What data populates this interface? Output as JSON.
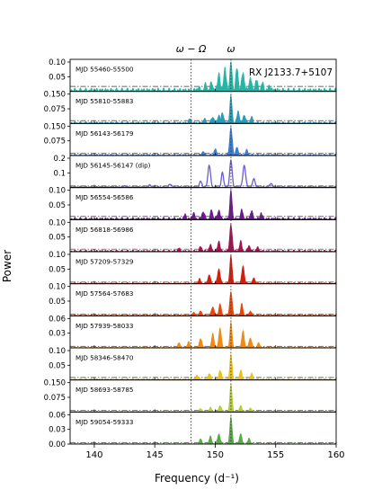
{
  "chart_data": {
    "type": "area",
    "object_label": "RX J2133.7+5107",
    "xlabel": "Frequency (d$^{-1}$)",
    "xlabel_display": "Frequency (d⁻¹)",
    "ylabel": "Power",
    "xlim": [
      138,
      160
    ],
    "x_ticks": [
      140,
      145,
      150,
      155,
      160
    ],
    "vlines": [
      {
        "label": "ω − Ω",
        "x": 148.0,
        "style": "dotted"
      },
      {
        "label": "ω",
        "x": 151.3,
        "style": "dotted"
      }
    ],
    "series": [
      {
        "name": "MJD 55460-55500",
        "color": "#26b5a4",
        "ylim": [
          0,
          0.1
        ],
        "yticks": [
          0.05,
          0.1
        ],
        "noise_level": 0.012,
        "peaks": [
          [
            148.6,
            0.01
          ],
          [
            149.2,
            0.02
          ],
          [
            149.7,
            0.025
          ],
          [
            150.3,
            0.06
          ],
          [
            150.8,
            0.075
          ],
          [
            151.3,
            0.1
          ],
          [
            151.8,
            0.075
          ],
          [
            152.3,
            0.06
          ],
          [
            152.9,
            0.045
          ],
          [
            153.4,
            0.035
          ],
          [
            153.9,
            0.025
          ],
          [
            154.5,
            0.015
          ]
        ]
      },
      {
        "name": "MJD 55810-55883",
        "color": "#2a9ab6",
        "ylim": [
          0,
          0.15
        ],
        "yticks": [
          0.075,
          0.15
        ],
        "noise_level": 0.01,
        "peaks": [
          [
            147.9,
            0.02
          ],
          [
            149.1,
            0.02
          ],
          [
            149.8,
            0.03
          ],
          [
            150.3,
            0.04
          ],
          [
            150.6,
            0.05
          ],
          [
            151.3,
            0.14
          ],
          [
            151.9,
            0.06
          ],
          [
            152.4,
            0.04
          ],
          [
            153.0,
            0.03
          ]
        ]
      },
      {
        "name": "MJD 56143-56179",
        "color": "#3b7dd0",
        "ylim": [
          0,
          0.15
        ],
        "yticks": [
          0.075,
          0.15
        ],
        "noise_level": 0.008,
        "peaks": [
          [
            149.0,
            0.02
          ],
          [
            150.0,
            0.03
          ],
          [
            151.3,
            0.14
          ],
          [
            151.8,
            0.04
          ],
          [
            152.6,
            0.025
          ]
        ]
      },
      {
        "name": "MJD 56145-56147 (dip)",
        "color": "#6b5cd0",
        "ylim": [
          0,
          0.2
        ],
        "yticks": [
          0.1,
          0.2
        ],
        "noise_level": 0.008,
        "style": "line",
        "peaks": [
          [
            142.5,
            0.01
          ],
          [
            144.6,
            0.015
          ],
          [
            146.3,
            0.02
          ],
          [
            148.8,
            0.04
          ],
          [
            149.5,
            0.15
          ],
          [
            150.6,
            0.1
          ],
          [
            151.3,
            0.18
          ],
          [
            152.4,
            0.15
          ],
          [
            153.2,
            0.06
          ],
          [
            154.6,
            0.025
          ]
        ]
      },
      {
        "name": "MJD 56554-56586",
        "color": "#6a1a8c",
        "ylim": [
          0,
          0.1
        ],
        "yticks": [
          0.05,
          0.1
        ],
        "noise_level": 0.008,
        "peaks": [
          [
            147.5,
            0.015
          ],
          [
            148.2,
            0.02
          ],
          [
            149.0,
            0.025
          ],
          [
            149.7,
            0.03
          ],
          [
            150.3,
            0.03
          ],
          [
            151.3,
            0.1
          ],
          [
            152.2,
            0.03
          ],
          [
            153.0,
            0.025
          ],
          [
            153.8,
            0.02
          ]
        ]
      },
      {
        "name": "MJD 56818-56986",
        "color": "#a01652",
        "ylim": [
          0,
          0.1
        ],
        "yticks": [
          0.05,
          0.1
        ],
        "noise_level": 0.006,
        "peaks": [
          [
            147.0,
            0.01
          ],
          [
            148.8,
            0.015
          ],
          [
            149.6,
            0.02
          ],
          [
            150.3,
            0.035
          ],
          [
            151.3,
            0.09
          ],
          [
            152.1,
            0.035
          ],
          [
            152.8,
            0.02
          ],
          [
            153.5,
            0.012
          ]
        ]
      },
      {
        "name": "MJD 57209-57329",
        "color": "#d01f10",
        "ylim": [
          0,
          0.1
        ],
        "yticks": [
          0.05,
          0.1
        ],
        "noise_level": 0.004,
        "peaks": [
          [
            148.7,
            0.015
          ],
          [
            149.5,
            0.03
          ],
          [
            150.3,
            0.05
          ],
          [
            151.3,
            0.095
          ],
          [
            152.3,
            0.06
          ],
          [
            153.2,
            0.02
          ]
        ]
      },
      {
        "name": "MJD 57564-57683",
        "color": "#e8470a",
        "ylim": [
          0,
          0.1
        ],
        "yticks": [
          0.05,
          0.1
        ],
        "noise_level": 0.004,
        "peaks": [
          [
            148.2,
            0.01
          ],
          [
            148.8,
            0.015
          ],
          [
            149.8,
            0.03
          ],
          [
            150.4,
            0.04
          ],
          [
            151.3,
            0.08
          ],
          [
            152.2,
            0.04
          ],
          [
            152.9,
            0.015
          ]
        ]
      },
      {
        "name": "MJD 57939-58033",
        "color": "#f08a12",
        "ylim": [
          0,
          0.06
        ],
        "yticks": [
          0.03,
          0.06
        ],
        "noise_level": 0.002,
        "peaks": [
          [
            147.0,
            0.01
          ],
          [
            147.8,
            0.012
          ],
          [
            148.8,
            0.018
          ],
          [
            149.8,
            0.03
          ],
          [
            150.4,
            0.04
          ],
          [
            151.3,
            0.052
          ],
          [
            152.3,
            0.035
          ],
          [
            152.9,
            0.02
          ],
          [
            153.6,
            0.01
          ]
        ]
      },
      {
        "name": "MJD 58346-58470",
        "color": "#e8c21a",
        "ylim": [
          0,
          0.1
        ],
        "yticks": [
          0.05,
          0.1
        ],
        "noise_level": 0.006,
        "peaks": [
          [
            148.5,
            0.015
          ],
          [
            149.5,
            0.02
          ],
          [
            150.4,
            0.03
          ],
          [
            151.3,
            0.085
          ],
          [
            152.1,
            0.03
          ],
          [
            153.0,
            0.02
          ]
        ]
      },
      {
        "name": "MJD 58693-58785",
        "color": "#b6cc3a",
        "ylim": [
          0,
          0.15
        ],
        "yticks": [
          0.075,
          0.15
        ],
        "noise_level": 0.006,
        "peaks": [
          [
            148.8,
            0.015
          ],
          [
            149.6,
            0.02
          ],
          [
            150.4,
            0.03
          ],
          [
            151.3,
            0.14
          ],
          [
            152.1,
            0.03
          ],
          [
            152.9,
            0.02
          ]
        ]
      },
      {
        "name": "MJD 59054-59333",
        "color": "#5aa84a",
        "ylim": [
          0,
          0.06
        ],
        "yticks": [
          0.0,
          0.03,
          0.06
        ],
        "noise_level": 0.002,
        "peaks": [
          [
            148.8,
            0.01
          ],
          [
            149.6,
            0.015
          ],
          [
            150.3,
            0.02
          ],
          [
            151.3,
            0.055
          ],
          [
            152.1,
            0.02
          ],
          [
            152.8,
            0.012
          ]
        ]
      }
    ]
  }
}
